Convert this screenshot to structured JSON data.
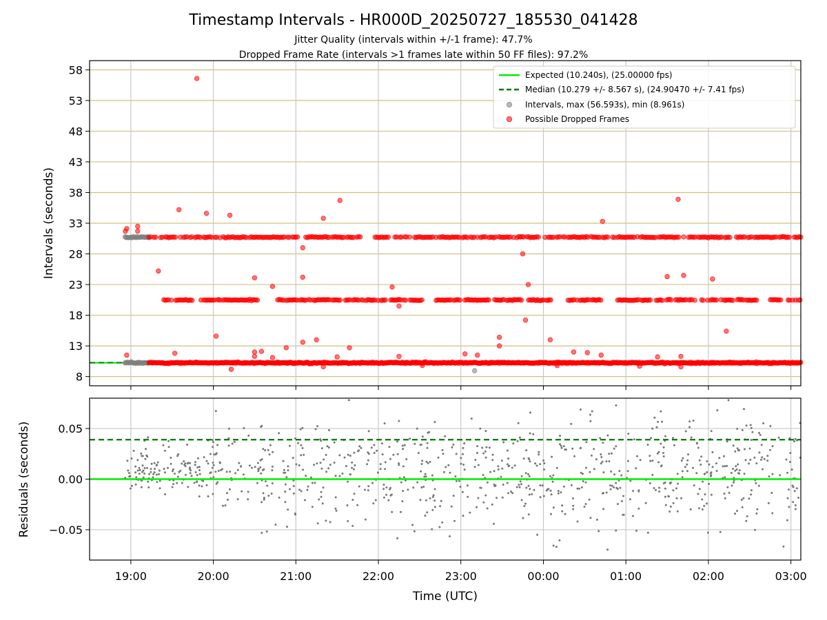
{
  "title": "Timestamp Intervals - HR000D_20250727_185530_041428",
  "subtitle_1": "Jitter Quality (intervals within +/-1 frame): 47.7%",
  "subtitle_2": "Dropped Frame Rate (intervals >1 frames late within 50 FF files): 97.2%",
  "colors": {
    "expected": "#00ee00",
    "median": "#007700",
    "intervals": "#808080",
    "dropped": "#ff0000",
    "hgrid_top": "#d4bf7f",
    "grid": "#c8c8c8"
  },
  "chart_data": [
    {
      "type": "scatter",
      "panel": "intervals",
      "xlabel": "",
      "ylabel": "Intervals (seconds)",
      "ylim": [
        6.5,
        59.5
      ],
      "yticks": [
        8,
        13,
        18,
        23,
        28,
        33,
        38,
        43,
        48,
        53,
        58
      ],
      "x_start": "18:30",
      "xlim_hours": [
        18.5,
        27.12
      ],
      "xtick_labels": [
        "19:00",
        "20:00",
        "21:00",
        "22:00",
        "23:00",
        "00:00",
        "01:00",
        "02:00",
        "03:00"
      ],
      "xtick_hours": [
        19,
        20,
        21,
        22,
        23,
        24,
        25,
        26,
        27
      ],
      "grid": "horizontal gold at y ticks, vertical gray at x ticks",
      "legend_position": "top-right",
      "legend": [
        "Expected (10.240s), (25.00000 fps)",
        "Median (10.279 +/- 8.567 s), (24.90470 +/- 7.41 fps)",
        "Intervals, max (56.593s), min (8.961s)",
        "Possible Dropped Frames"
      ],
      "expected_interval": 10.24,
      "median_interval": 10.279,
      "dropped_bands": [
        10.24,
        20.48,
        30.72
      ],
      "notable_points": [
        {
          "time": "19:48",
          "value": 56.593,
          "series": "Possible Dropped Frames"
        },
        {
          "time": "23:10",
          "value": 8.961,
          "series": "Intervals"
        },
        {
          "time": "21:32",
          "value": 36.7
        },
        {
          "time": "01:38",
          "value": 36.9
        },
        {
          "time": "19:35",
          "value": 35.2
        },
        {
          "time": "19:55",
          "value": 34.6
        },
        {
          "time": "20:12",
          "value": 34.3
        },
        {
          "time": "21:20",
          "value": 33.8
        },
        {
          "time": "00:43",
          "value": 33.3
        },
        {
          "time": "23:45",
          "value": 28.0
        },
        {
          "time": "21:05",
          "value": 29.0
        },
        {
          "time": "19:20",
          "value": 25.2
        },
        {
          "time": "21:05",
          "value": 24.2
        },
        {
          "time": "20:30",
          "value": 24.1
        },
        {
          "time": "01:30",
          "value": 24.3
        },
        {
          "time": "01:42",
          "value": 24.5
        },
        {
          "time": "02:03",
          "value": 23.9
        },
        {
          "time": "23:49",
          "value": 23.0
        },
        {
          "time": "20:43",
          "value": 22.7
        },
        {
          "time": "22:10",
          "value": 22.6
        },
        {
          "time": "22:15",
          "value": 19.5
        },
        {
          "time": "23:47",
          "value": 17.2
        },
        {
          "time": "02:13",
          "value": 15.4
        },
        {
          "time": "20:02",
          "value": 14.6
        },
        {
          "time": "23:28",
          "value": 14.4
        },
        {
          "time": "00:05",
          "value": 14.0
        },
        {
          "time": "21:15",
          "value": 14.0
        },
        {
          "time": "21:05",
          "value": 13.6
        },
        {
          "time": "23:28",
          "value": 13.0
        },
        {
          "time": "20:53",
          "value": 12.7
        },
        {
          "time": "21:39",
          "value": 12.7
        },
        {
          "time": "20:30",
          "value": 12.0
        },
        {
          "time": "20:35",
          "value": 12.1
        },
        {
          "time": "00:22",
          "value": 12.0
        },
        {
          "time": "00:32",
          "value": 11.9
        },
        {
          "time": "18:57",
          "value": 11.5
        },
        {
          "time": "19:32",
          "value": 11.8
        },
        {
          "time": "20:30",
          "value": 11.3
        },
        {
          "time": "20:43",
          "value": 11.1
        },
        {
          "time": "21:30",
          "value": 11.2
        },
        {
          "time": "22:15",
          "value": 11.3
        },
        {
          "time": "23:03",
          "value": 11.7
        },
        {
          "time": "23:12",
          "value": 11.5
        },
        {
          "time": "00:42",
          "value": 11.5
        },
        {
          "time": "01:23",
          "value": 11.2
        },
        {
          "time": "01:40",
          "value": 11.3
        },
        {
          "time": "20:13",
          "value": 9.2
        },
        {
          "time": "21:20",
          "value": 9.6
        },
        {
          "time": "22:32",
          "value": 9.8
        },
        {
          "time": "00:10",
          "value": 9.8
        },
        {
          "time": "01:10",
          "value": 9.7
        },
        {
          "time": "01:40",
          "value": 9.6
        },
        {
          "time": "18:56",
          "value": 31.7
        },
        {
          "time": "18:57",
          "value": 32.1
        },
        {
          "time": "19:05",
          "value": 32.5
        },
        {
          "time": "19:05",
          "value": 31.7
        }
      ]
    },
    {
      "type": "scatter",
      "panel": "residuals",
      "xlabel": "Time (UTC)",
      "ylabel": "Residuals (seconds)",
      "ylim": [
        -0.08,
        0.08
      ],
      "yticks": [
        -0.05,
        0.0,
        0.05
      ],
      "ytick_labels": [
        "−0.05",
        "0.00",
        "0.05"
      ],
      "reference_lines": [
        0.0,
        0.039
      ],
      "grid": "gray at ticks",
      "residual_range": [
        -0.074,
        0.078
      ]
    }
  ]
}
